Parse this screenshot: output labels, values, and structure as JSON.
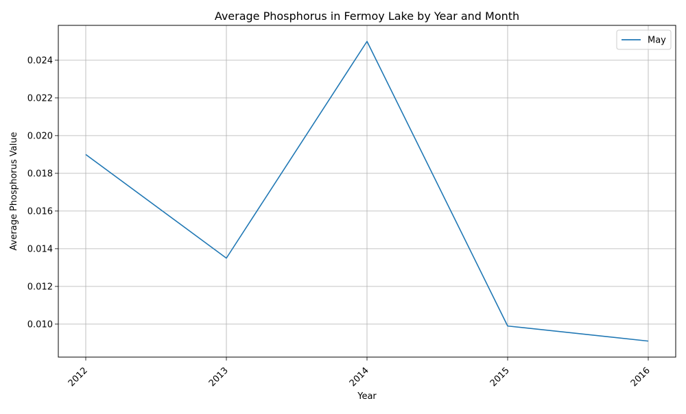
{
  "chart_data": {
    "type": "line",
    "title": "Average Phosphorus in Fermoy Lake by Year and Month",
    "xlabel": "Year",
    "ylabel": "Average Phosphorus Value",
    "x": [
      "2012",
      "2013",
      "2014",
      "2015",
      "2016"
    ],
    "series": [
      {
        "name": "May",
        "color": "#1f77b4",
        "values": [
          0.019,
          0.0135,
          0.025,
          0.0099,
          0.0091
        ]
      }
    ],
    "ylim": [
      0.00825,
      0.02585
    ],
    "yticks": [
      0.01,
      0.012,
      0.014,
      0.016,
      0.018,
      0.02,
      0.022,
      0.024
    ],
    "ytick_labels": [
      "0.010",
      "0.012",
      "0.014",
      "0.016",
      "0.018",
      "0.020",
      "0.022",
      "0.024"
    ],
    "grid": true,
    "legend_position": "top-right",
    "x_tick_rotation_deg": 45
  }
}
